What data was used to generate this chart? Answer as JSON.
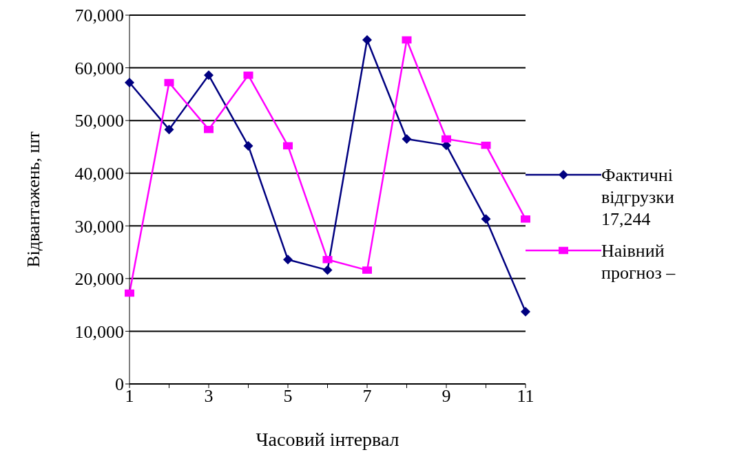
{
  "chart_data": {
    "type": "line",
    "xlabel": "Часовий інтервал",
    "ylabel": "Відвантажень, шт",
    "categories": [
      "1",
      null,
      "3",
      null,
      "5",
      null,
      "7",
      null,
      "9",
      null,
      "11"
    ],
    "series": [
      {
        "name": "Фактичні відгрузки 17,244",
        "color": "#000080",
        "marker": "diamond",
        "values": [
          57200,
          48300,
          58600,
          45200,
          23600,
          21600,
          65300,
          46500,
          45300,
          31300,
          13700
        ]
      },
      {
        "name": "Наівний прогноз –",
        "color": "#ff00ff",
        "marker": "square",
        "values": [
          17244,
          57200,
          48300,
          58600,
          45200,
          23600,
          21600,
          65300,
          46500,
          45300,
          31300
        ]
      }
    ],
    "ylim": [
      0,
      70000
    ],
    "yticks": [
      {
        "value": 0,
        "label": "0"
      },
      {
        "value": 10000,
        "label": "10,000"
      },
      {
        "value": 20000,
        "label": "20,000"
      },
      {
        "value": 30000,
        "label": "30,000"
      },
      {
        "value": 40000,
        "label": "40,000"
      },
      {
        "value": 50000,
        "label": "50,000"
      },
      {
        "value": 60000,
        "label": "60,000"
      },
      {
        "value": 70000,
        "label": "70,000"
      }
    ],
    "grid": "y",
    "legend": "right",
    "line_style": "solid"
  }
}
